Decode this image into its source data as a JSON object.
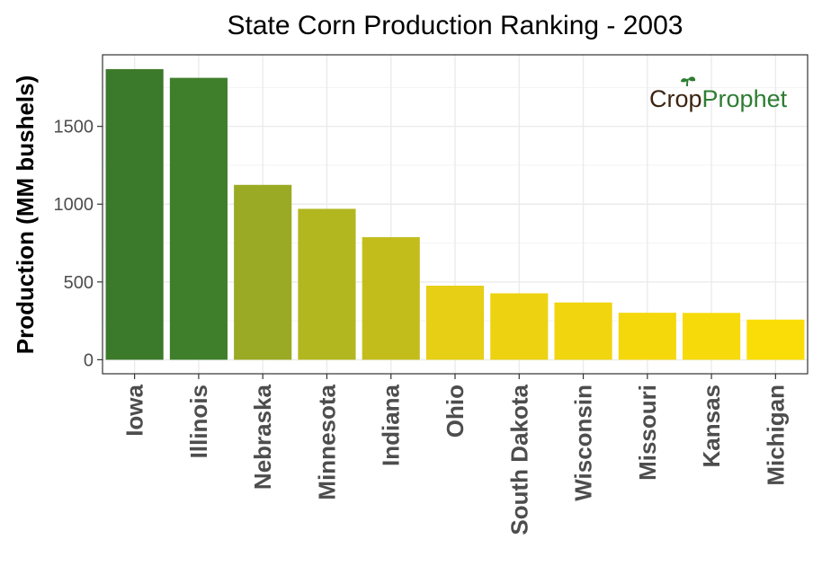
{
  "chart_data": {
    "type": "bar",
    "title": "State Corn Production Ranking - 2003",
    "xlabel": "",
    "ylabel": "Production (MM bushels)",
    "categories": [
      "Iowa",
      "Illinois",
      "Nebraska",
      "Minnesota",
      "Indiana",
      "Ohio",
      "South Dakota",
      "Wisconsin",
      "Missouri",
      "Kansas",
      "Michigan"
    ],
    "values": [
      1868,
      1812,
      1124,
      970,
      788,
      476,
      427,
      368,
      302,
      301,
      258
    ],
    "colors": [
      "#3b7a2b",
      "#3f7f2c",
      "#9aaa24",
      "#b2b720",
      "#c3bd1c",
      "#e6cf14",
      "#ecd211",
      "#f0d50f",
      "#f4d80c",
      "#f6da0a",
      "#fadd07"
    ],
    "yticks": [
      0,
      500,
      1000,
      1500
    ],
    "ylim": [
      -90,
      1960
    ],
    "grid": true,
    "legend": "none"
  },
  "watermark": {
    "part1": "Crop",
    "part2": "Prophet",
    "colors": [
      "#3d2410",
      "#2e7d32"
    ]
  }
}
